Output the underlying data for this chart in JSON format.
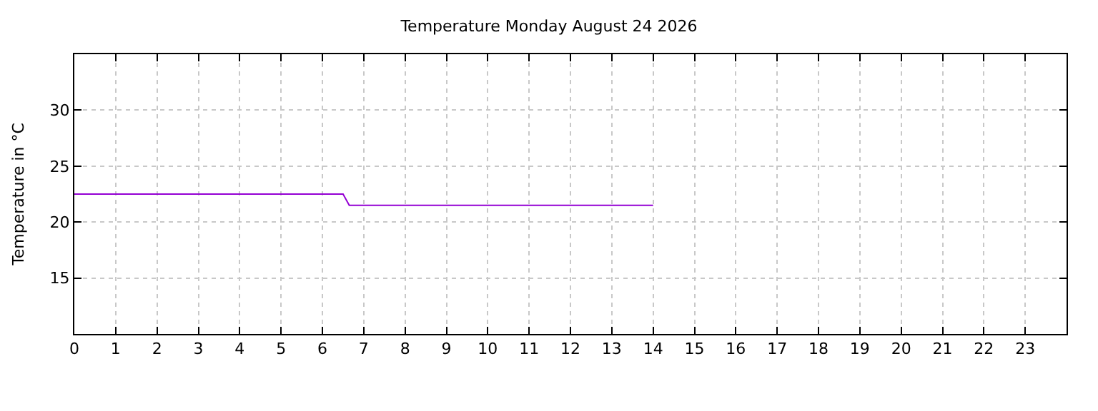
{
  "chart_data": {
    "type": "line",
    "title": "Temperature Monday August 24 2026",
    "ylabel": "Temperature in °C",
    "x": [
      0,
      6.5,
      6.65,
      14
    ],
    "series": [
      {
        "color": "#9400d3",
        "values": [
          22.5,
          22.5,
          21.5,
          21.5
        ]
      }
    ],
    "xlim": [
      0,
      24
    ],
    "xticks": [
      0,
      1,
      2,
      3,
      4,
      5,
      6,
      7,
      8,
      9,
      10,
      11,
      12,
      13,
      14,
      15,
      16,
      17,
      18,
      19,
      20,
      21,
      22,
      23
    ],
    "ylim": [
      10,
      35
    ],
    "yticks": [
      15,
      20,
      25,
      30
    ],
    "grid": true,
    "legend": false,
    "marker": "none",
    "line_style": "solid"
  }
}
